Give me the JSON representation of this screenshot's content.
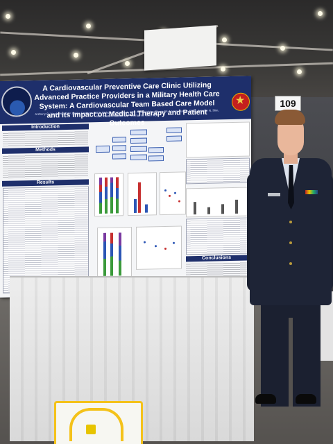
{
  "poster": {
    "title": "A Cardiovascular Preventive Care Clinic Utilizing Advanced Practice Providers in a Military Health Care System: A Cardiovascular Team Based Care Model and its Impact on Medical Therapy and Patient Outcomes",
    "authors": "Anthony G. Vande Hei, DO¹; Emilio Fentanes, MD¹; Nicholas F. Kaufman, MD¹; Scott Holoby, Pharm D¹; Norma Suarez, PhD¹; Jennifer N. Slim, MD²; Dustin Thomas, MD¹; Ahmad M. Slim, MD¹",
    "sections": {
      "introduction": "Introduction",
      "methods": "Methods",
      "results": "Results",
      "conclusions": "Conclusions"
    }
  },
  "board_number": "109",
  "colors": {
    "poster_header": "#1e2f6b",
    "series_green": "#3b9a3b",
    "series_blue": "#2c56b5",
    "series_purple": "#7a3aa0",
    "series_red": "#c63030",
    "tote_yellow": "#f4c21a"
  }
}
